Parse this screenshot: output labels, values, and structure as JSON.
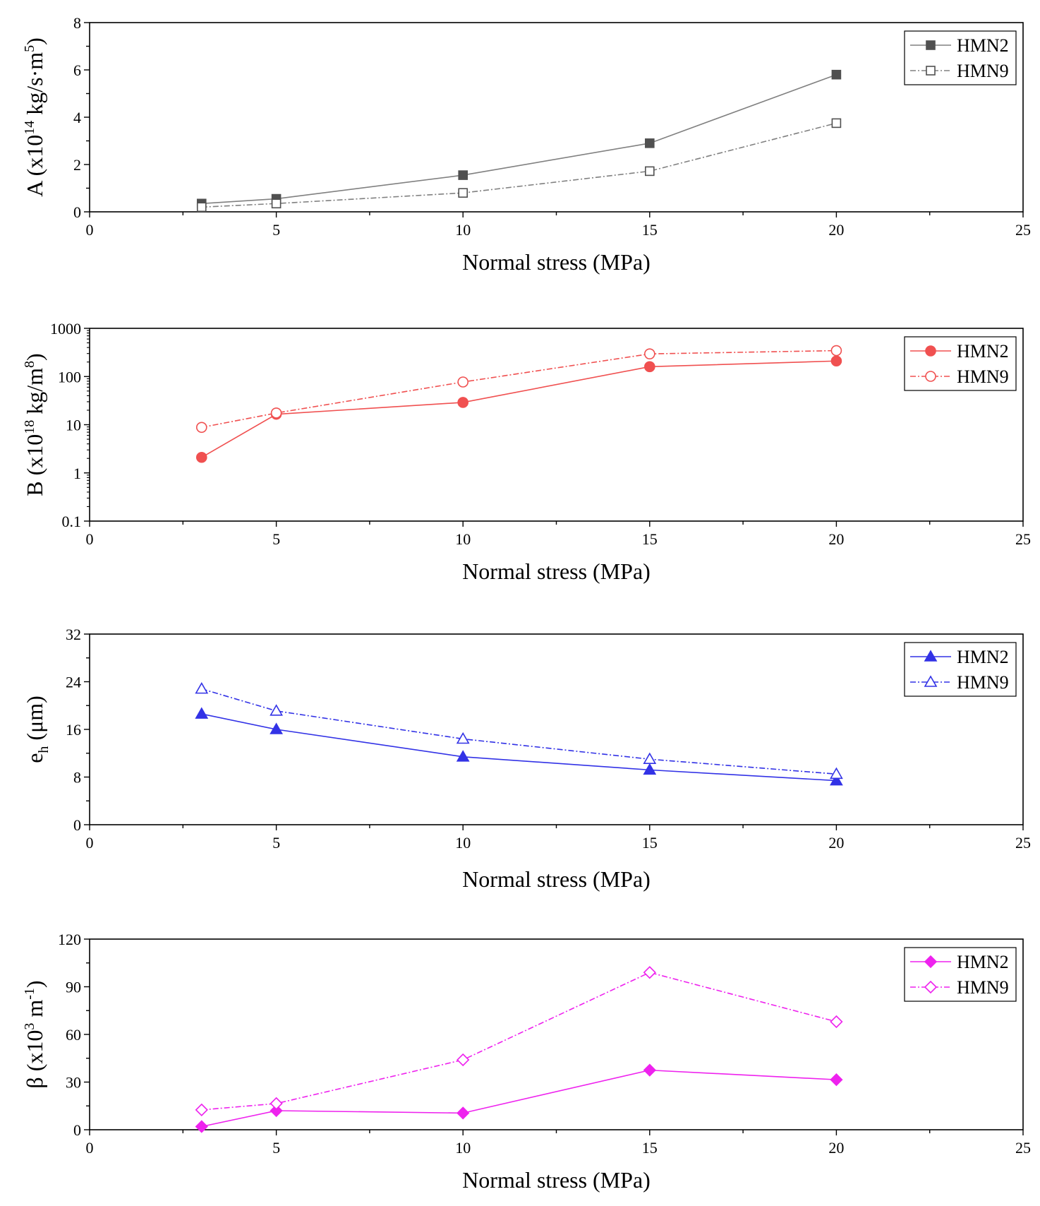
{
  "chart_data": [
    {
      "type": "line",
      "id": "A",
      "ylabel": {
        "main": "A (x10",
        "sup": "14",
        "rest": " kg/s·m",
        "sup2": "5",
        "end": ")"
      },
      "xlabel": "Normal stress (MPa)",
      "xlim": [
        0,
        25
      ],
      "xticks": [
        "0",
        "5",
        "10",
        "15",
        "20",
        "25"
      ],
      "ylim": [
        0,
        8
      ],
      "yscale": "linear",
      "yticks": [
        "0",
        "2",
        "4",
        "6",
        "8"
      ],
      "ytick_values": [
        0,
        2,
        4,
        6,
        8
      ],
      "color": "#808080",
      "marker": "square",
      "legend": "top-right",
      "series": [
        {
          "name": "HMN2",
          "x": [
            3,
            5,
            10,
            15,
            20
          ],
          "values": [
            0.35,
            0.55,
            1.55,
            2.9,
            5.8
          ],
          "filled": true,
          "dashed": false
        },
        {
          "name": "HMN9",
          "x": [
            3,
            5,
            10,
            15,
            20
          ],
          "values": [
            0.2,
            0.35,
            0.8,
            1.72,
            3.75
          ],
          "filled": false,
          "dashed": true
        }
      ]
    },
    {
      "type": "line",
      "id": "B",
      "ylabel": {
        "main": "B (x10",
        "sup": "18",
        "rest": " kg/m",
        "sup2": "8",
        "end": ")"
      },
      "xlabel": "Normal stress (MPa)",
      "xlim": [
        0,
        25
      ],
      "xticks": [
        "0",
        "5",
        "10",
        "15",
        "20",
        "25"
      ],
      "ylim": [
        0.1,
        1000
      ],
      "yscale": "log",
      "yticks": [
        "0.1",
        "1",
        "10",
        "100",
        "1000"
      ],
      "ytick_values": [
        0.1,
        1,
        10,
        100,
        1000
      ],
      "color": "#f05050",
      "marker": "circle",
      "legend": "top-right",
      "series": [
        {
          "name": "HMN2",
          "x": [
            3,
            5,
            10,
            15,
            20
          ],
          "values": [
            2.1,
            16.5,
            29,
            160,
            210
          ],
          "filled": true,
          "dashed": false
        },
        {
          "name": "HMN9",
          "x": [
            3,
            5,
            10,
            15,
            20
          ],
          "values": [
            8.8,
            17.5,
            77,
            295,
            345
          ],
          "filled": false,
          "dashed": true
        }
      ]
    },
    {
      "type": "line",
      "id": "eh",
      "ylabel": {
        "main": "e",
        "sub": "h",
        "rest": " (μm)"
      },
      "xlabel": "Normal stress (MPa)",
      "xlim": [
        0,
        25
      ],
      "xticks": [
        "0",
        "5",
        "10",
        "15",
        "20",
        "25"
      ],
      "ylim": [
        0,
        32
      ],
      "yscale": "linear",
      "yticks": [
        "0",
        "8",
        "16",
        "24",
        "32"
      ],
      "ytick_values": [
        0,
        8,
        16,
        24,
        32
      ],
      "color": "#3232e6",
      "marker": "triangle",
      "legend": "top-right",
      "series": [
        {
          "name": "HMN2",
          "x": [
            3,
            5,
            10,
            15,
            20
          ],
          "values": [
            18.6,
            16.0,
            11.4,
            9.2,
            7.4
          ],
          "filled": true,
          "dashed": false
        },
        {
          "name": "HMN9",
          "x": [
            3,
            5,
            10,
            15,
            20
          ],
          "values": [
            22.8,
            19.1,
            14.4,
            11.0,
            8.5
          ],
          "filled": false,
          "dashed": true
        }
      ]
    },
    {
      "type": "line",
      "id": "beta",
      "ylabel": {
        "main": "β (x10",
        "sup": "3",
        "rest": " m",
        "sup2": "-1",
        "end": ")"
      },
      "xlabel": "Normal stress (MPa)",
      "xlim": [
        0,
        25
      ],
      "xticks": [
        "0",
        "5",
        "10",
        "15",
        "20",
        "25"
      ],
      "ylim": [
        0,
        120
      ],
      "yscale": "linear",
      "yticks": [
        "0",
        "30",
        "60",
        "90",
        "120"
      ],
      "ytick_values": [
        0,
        30,
        60,
        90,
        120
      ],
      "color": "#ee22ee",
      "marker": "diamond",
      "legend": "top-right",
      "series": [
        {
          "name": "HMN2",
          "x": [
            3,
            5,
            10,
            15,
            20
          ],
          "values": [
            2,
            12,
            10.5,
            37.5,
            31.5
          ],
          "filled": true,
          "dashed": false
        },
        {
          "name": "HMN9",
          "x": [
            3,
            5,
            10,
            15,
            20
          ],
          "values": [
            12.5,
            16.5,
            44,
            99,
            68
          ],
          "filled": false,
          "dashed": true
        }
      ]
    }
  ]
}
